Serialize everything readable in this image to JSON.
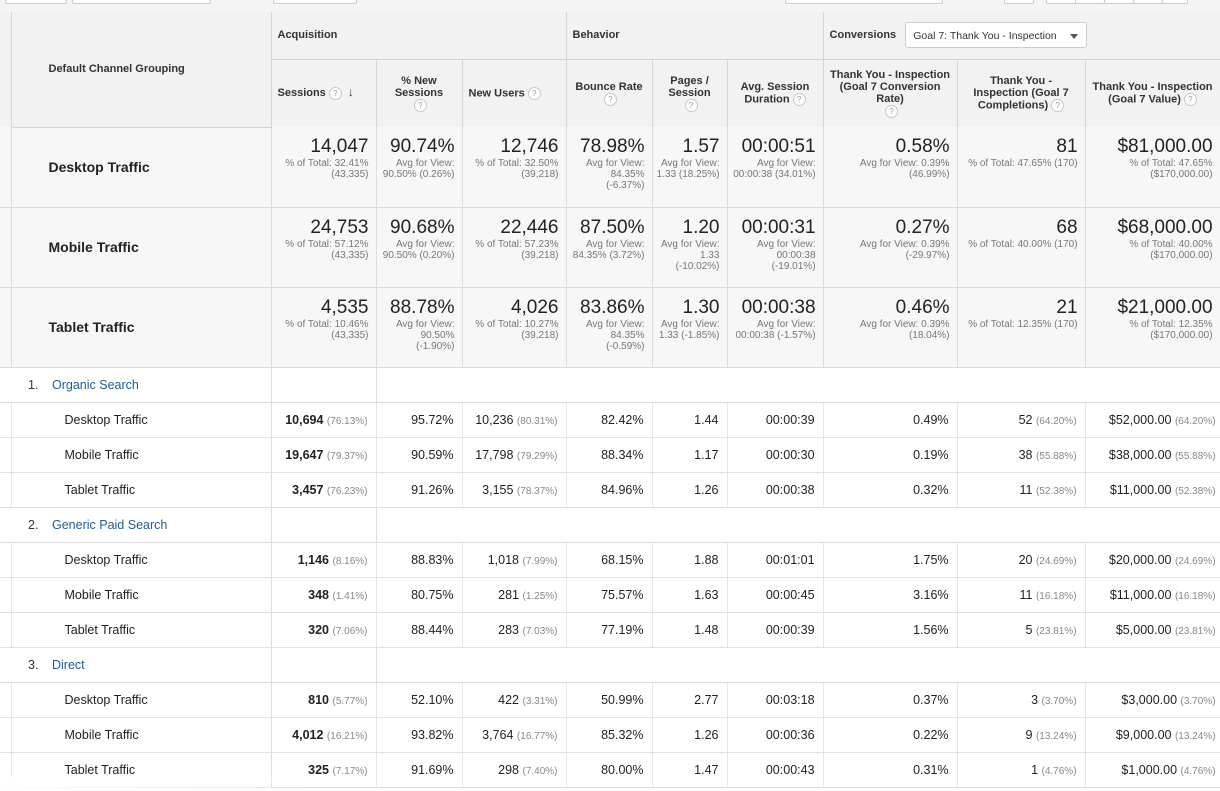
{
  "header": {
    "dimension": "Default Channel Grouping",
    "groups": {
      "acquisition": "Acquisition",
      "behavior": "Behavior",
      "conversions": "Conversions"
    },
    "goal_select": "Goal 7: Thank You - Inspection",
    "metrics": {
      "sessions": "Sessions",
      "new_sessions": "% New Sessions",
      "new_users": "New Users",
      "bounce_rate": "Bounce Rate",
      "pages_session": "Pages / Session",
      "avg_duration": "Avg. Session Duration",
      "conv_rate": "Thank You - Inspection (Goal 7 Conversion Rate)",
      "completions": "Thank You - Inspection (Goal 7 Completions)",
      "value": "Thank You - Inspection (Goal 7 Value)"
    },
    "help": "?",
    "sort_arrow": "↓"
  },
  "summary": [
    {
      "label": "Desktop Traffic",
      "sessions": "14,047",
      "sessions_sub": "% of Total: 32.41% (43,335)",
      "new_sessions": "90.74%",
      "new_sessions_sub": "Avg for View: 90.50% (0.26%)",
      "new_users": "12,746",
      "new_users_sub": "% of Total: 32.50% (39,218)",
      "bounce": "78.98%",
      "bounce_sub": "Avg for View: 84.35% (-6.37%)",
      "pages": "1.57",
      "pages_sub": "Avg for View: 1.33 (18.25%)",
      "duration": "00:00:51",
      "duration_sub": "Avg for View: 00:00:38 (34.01%)",
      "conv": "0.58%",
      "conv_sub": "Avg for View: 0.39% (46.99%)",
      "comp": "81",
      "comp_sub": "% of Total: 47.65% (170)",
      "value": "$81,000.00",
      "value_sub": "% of Total: 47.65% ($170,000.00)"
    },
    {
      "label": "Mobile Traffic",
      "sessions": "24,753",
      "sessions_sub": "% of Total: 57.12% (43,335)",
      "new_sessions": "90.68%",
      "new_sessions_sub": "Avg for View: 90.50% (0.20%)",
      "new_users": "22,446",
      "new_users_sub": "% of Total: 57.23% (39,218)",
      "bounce": "87.50%",
      "bounce_sub": "Avg for View: 84.35% (3.72%)",
      "pages": "1.20",
      "pages_sub": "Avg for View: 1.33 (-10.02%)",
      "duration": "00:00:31",
      "duration_sub": "Avg for View: 00:00:38 (-19.01%)",
      "conv": "0.27%",
      "conv_sub": "Avg for View: 0.39% (-29.97%)",
      "comp": "68",
      "comp_sub": "% of Total: 40.00% (170)",
      "value": "$68,000.00",
      "value_sub": "% of Total: 40.00% ($170,000.00)"
    },
    {
      "label": "Tablet Traffic",
      "sessions": "4,535",
      "sessions_sub": "% of Total: 10.46% (43,335)",
      "new_sessions": "88.78%",
      "new_sessions_sub": "Avg for View: 90.50% (-1.90%)",
      "new_users": "4,026",
      "new_users_sub": "% of Total: 10.27% (39,218)",
      "bounce": "83.86%",
      "bounce_sub": "Avg for View: 84.35% (-0.59%)",
      "pages": "1.30",
      "pages_sub": "Avg for View: 1.33 (-1.85%)",
      "duration": "00:00:38",
      "duration_sub": "Avg for View: 00:00:38 (-1.57%)",
      "conv": "0.46%",
      "conv_sub": "Avg for View: 0.39% (18.04%)",
      "comp": "21",
      "comp_sub": "% of Total: 12.35% (170)",
      "value": "$21,000.00",
      "value_sub": "% of Total: 12.35% ($170,000.00)"
    }
  ],
  "groups": [
    {
      "num": "1.",
      "name": "Organic Search",
      "rows": [
        {
          "label": "Desktop Traffic",
          "sessions": "10,694",
          "sessions_pct": "(76.13%)",
          "new_sessions": "95.72%",
          "new_users": "10,236",
          "new_users_pct": "(80.31%)",
          "bounce": "82.42%",
          "pages": "1.44",
          "duration": "00:00:39",
          "conv": "0.49%",
          "comp": "52",
          "comp_pct": "(64.20%)",
          "value": "$52,000.00",
          "value_pct": "(64.20%)"
        },
        {
          "label": "Mobile Traffic",
          "sessions": "19,647",
          "sessions_pct": "(79.37%)",
          "new_sessions": "90.59%",
          "new_users": "17,798",
          "new_users_pct": "(79.29%)",
          "bounce": "88.34%",
          "pages": "1.17",
          "duration": "00:00:30",
          "conv": "0.19%",
          "comp": "38",
          "comp_pct": "(55.88%)",
          "value": "$38,000.00",
          "value_pct": "(55.88%)"
        },
        {
          "label": "Tablet Traffic",
          "sessions": "3,457",
          "sessions_pct": "(76.23%)",
          "new_sessions": "91.26%",
          "new_users": "3,155",
          "new_users_pct": "(78.37%)",
          "bounce": "84.96%",
          "pages": "1.26",
          "duration": "00:00:38",
          "conv": "0.32%",
          "comp": "11",
          "comp_pct": "(52.38%)",
          "value": "$11,000.00",
          "value_pct": "(52.38%)"
        }
      ]
    },
    {
      "num": "2.",
      "name": "Generic Paid Search",
      "rows": [
        {
          "label": "Desktop Traffic",
          "sessions": "1,146",
          "sessions_pct": "(8.16%)",
          "new_sessions": "88.83%",
          "new_users": "1,018",
          "new_users_pct": "(7.99%)",
          "bounce": "68.15%",
          "pages": "1.88",
          "duration": "00:01:01",
          "conv": "1.75%",
          "comp": "20",
          "comp_pct": "(24.69%)",
          "value": "$20,000.00",
          "value_pct": "(24.69%)"
        },
        {
          "label": "Mobile Traffic",
          "sessions": "348",
          "sessions_pct": "(1.41%)",
          "new_sessions": "80.75%",
          "new_users": "281",
          "new_users_pct": "(1.25%)",
          "bounce": "75.57%",
          "pages": "1.63",
          "duration": "00:00:45",
          "conv": "3.16%",
          "comp": "11",
          "comp_pct": "(16.18%)",
          "value": "$11,000.00",
          "value_pct": "(16.18%)"
        },
        {
          "label": "Tablet Traffic",
          "sessions": "320",
          "sessions_pct": "(7.06%)",
          "new_sessions": "88.44%",
          "new_users": "283",
          "new_users_pct": "(7.03%)",
          "bounce": "77.19%",
          "pages": "1.48",
          "duration": "00:00:39",
          "conv": "1.56%",
          "comp": "5",
          "comp_pct": "(23.81%)",
          "value": "$5,000.00",
          "value_pct": "(23.81%)"
        }
      ]
    },
    {
      "num": "3.",
      "name": "Direct",
      "rows": [
        {
          "label": "Desktop Traffic",
          "sessions": "810",
          "sessions_pct": "(5.77%)",
          "new_sessions": "52.10%",
          "new_users": "422",
          "new_users_pct": "(3.31%)",
          "bounce": "50.99%",
          "pages": "2.77",
          "duration": "00:03:18",
          "conv": "0.37%",
          "comp": "3",
          "comp_pct": "(3.70%)",
          "value": "$3,000.00",
          "value_pct": "(3.70%)"
        },
        {
          "label": "Mobile Traffic",
          "sessions": "4,012",
          "sessions_pct": "(16.21%)",
          "new_sessions": "93.82%",
          "new_users": "3,764",
          "new_users_pct": "(16.77%)",
          "bounce": "85.32%",
          "pages": "1.26",
          "duration": "00:00:36",
          "conv": "0.22%",
          "comp": "9",
          "comp_pct": "(13.24%)",
          "value": "$9,000.00",
          "value_pct": "(13.24%)"
        },
        {
          "label": "Tablet Traffic",
          "sessions": "325",
          "sessions_pct": "(7.17%)",
          "new_sessions": "91.69%",
          "new_users": "298",
          "new_users_pct": "(7.40%)",
          "bounce": "80.00%",
          "pages": "1.47",
          "duration": "00:00:43",
          "conv": "0.31%",
          "comp": "1",
          "comp_pct": "(4.76%)",
          "value": "$1,000.00",
          "value_pct": "(4.76%)"
        }
      ]
    }
  ]
}
